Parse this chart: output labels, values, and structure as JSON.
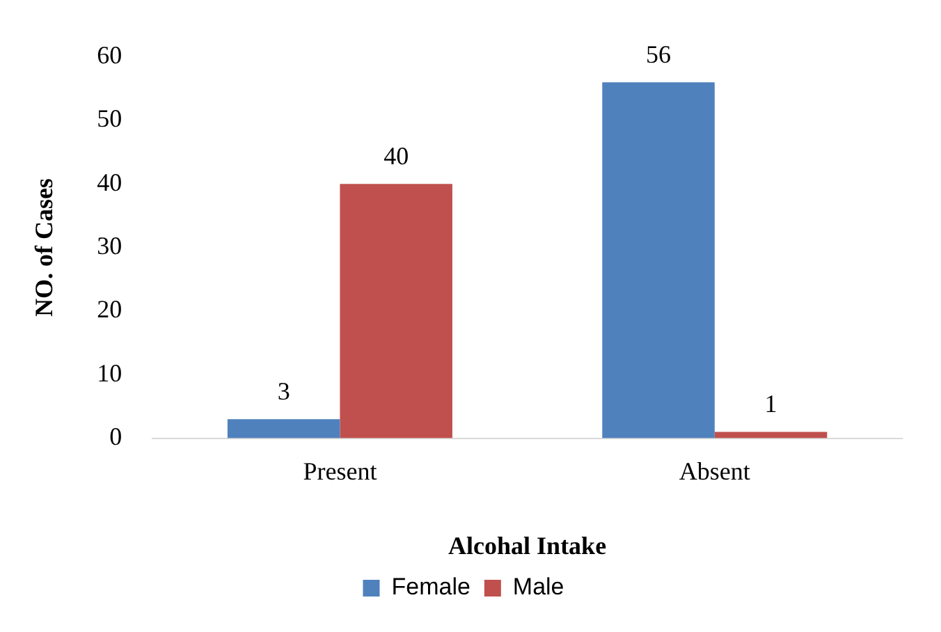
{
  "chart_data": {
    "type": "bar",
    "categories": [
      "Present",
      "Absent"
    ],
    "series": [
      {
        "name": "Female",
        "color": "#4f81bd",
        "values": [
          3,
          56
        ]
      },
      {
        "name": "Male",
        "color": "#c0504d",
        "values": [
          40,
          1
        ]
      }
    ],
    "xlabel": "Alcohal Intake",
    "ylabel": "NO. of Cases",
    "ylim": [
      0,
      60
    ],
    "yticks": [
      0,
      10,
      20,
      30,
      40,
      50,
      60
    ],
    "grid": false,
    "legend": "bottom",
    "data_labels": true
  }
}
